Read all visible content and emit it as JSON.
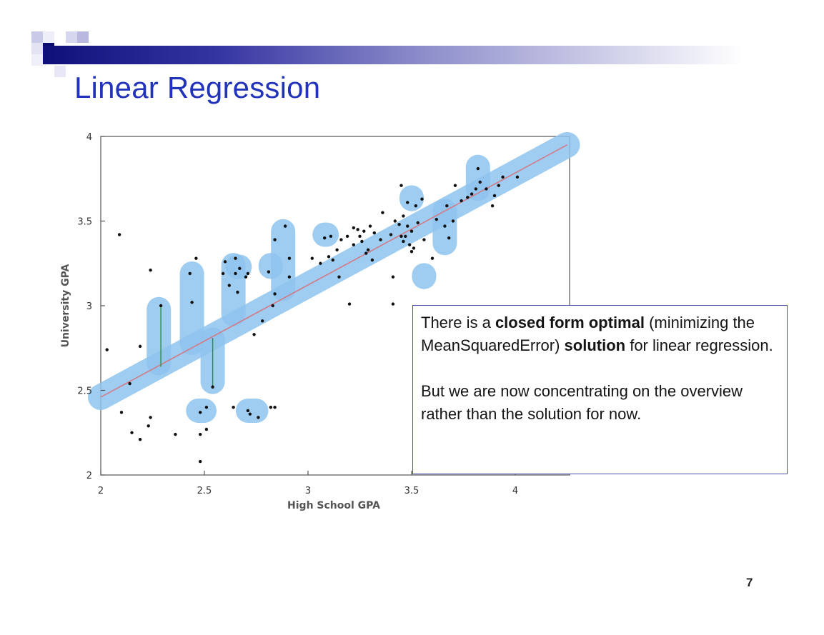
{
  "slide": {
    "title": "Linear Regression",
    "page_number": "7",
    "colors": {
      "title": "#2233bb",
      "header_bar_start": "#10107a",
      "box_border": "#4c4cae",
      "highlight": "#8ec3ef",
      "regression_line": "#d27b87",
      "residual_line": "#2f8f2f",
      "points": "#111111"
    },
    "note": {
      "p1_lead": "There is a ",
      "p1_bold1": "closed form optimal",
      "p1_mid": " (minimizing the MeanSquaredError) ",
      "p1_bold2": "solution",
      "p1_tail": " for linear regression.",
      "p2": "But we are now concentrating on the overview rather than the solution for now."
    }
  },
  "chart_data": {
    "type": "scatter",
    "xlabel": "High School GPA",
    "ylabel": "University GPA",
    "xlim": [
      2,
      4.25
    ],
    "ylim": [
      2,
      4
    ],
    "xticks": [
      {
        "value": 2,
        "label": "2"
      },
      {
        "value": 2.5,
        "label": "2.5"
      },
      {
        "value": 3,
        "label": "3"
      },
      {
        "value": 3.5,
        "label": "3.5"
      },
      {
        "value": 4,
        "label": "4"
      }
    ],
    "yticks": [
      {
        "value": 2,
        "label": "2"
      },
      {
        "value": 2.5,
        "label": "2.5"
      },
      {
        "value": 3,
        "label": "3"
      },
      {
        "value": 3.5,
        "label": "3.5"
      },
      {
        "value": 4,
        "label": "4"
      }
    ],
    "grid": false,
    "regression_line": {
      "x1": 2.0,
      "y1": 2.46,
      "x2": 4.25,
      "y2": 3.95
    },
    "points": [
      [
        2.03,
        2.74
      ],
      [
        2.09,
        3.42
      ],
      [
        2.1,
        2.37
      ],
      [
        2.14,
        2.54
      ],
      [
        2.15,
        2.25
      ],
      [
        2.19,
        2.76
      ],
      [
        2.19,
        2.21
      ],
      [
        2.23,
        2.29
      ],
      [
        2.24,
        2.34
      ],
      [
        2.24,
        3.21
      ],
      [
        2.29,
        3.0
      ],
      [
        2.36,
        2.24
      ],
      [
        2.43,
        3.19
      ],
      [
        2.44,
        3.02
      ],
      [
        2.46,
        3.28
      ],
      [
        2.48,
        2.37
      ],
      [
        2.48,
        2.24
      ],
      [
        2.48,
        2.08
      ],
      [
        2.51,
        2.4
      ],
      [
        2.51,
        2.27
      ],
      [
        2.54,
        2.52
      ],
      [
        2.59,
        3.19
      ],
      [
        2.6,
        3.26
      ],
      [
        2.62,
        3.12
      ],
      [
        2.64,
        2.4
      ],
      [
        2.65,
        3.28
      ],
      [
        2.65,
        3.19
      ],
      [
        2.66,
        3.08
      ],
      [
        2.67,
        3.22
      ],
      [
        2.7,
        3.17
      ],
      [
        2.71,
        3.19
      ],
      [
        2.71,
        2.38
      ],
      [
        2.72,
        2.36
      ],
      [
        2.74,
        2.83
      ],
      [
        2.76,
        2.34
      ],
      [
        2.78,
        2.91
      ],
      [
        2.81,
        3.2
      ],
      [
        2.82,
        2.4
      ],
      [
        2.83,
        3.0
      ],
      [
        2.84,
        3.07
      ],
      [
        2.84,
        3.39
      ],
      [
        2.84,
        2.4
      ],
      [
        2.89,
        3.47
      ],
      [
        2.91,
        3.17
      ],
      [
        2.91,
        3.28
      ],
      [
        3.02,
        3.28
      ],
      [
        3.06,
        3.25
      ],
      [
        3.08,
        3.4
      ],
      [
        3.1,
        3.29
      ],
      [
        3.11,
        3.41
      ],
      [
        3.12,
        3.27
      ],
      [
        3.14,
        3.33
      ],
      [
        3.15,
        3.17
      ],
      [
        3.16,
        3.39
      ],
      [
        3.19,
        3.41
      ],
      [
        3.2,
        3.01
      ],
      [
        3.22,
        3.46
      ],
      [
        3.22,
        3.36
      ],
      [
        3.24,
        3.45
      ],
      [
        3.25,
        3.41
      ],
      [
        3.26,
        3.38
      ],
      [
        3.27,
        3.44
      ],
      [
        3.28,
        3.31
      ],
      [
        3.29,
        3.33
      ],
      [
        3.3,
        3.47
      ],
      [
        3.31,
        3.27
      ],
      [
        3.32,
        3.43
      ],
      [
        3.35,
        3.39
      ],
      [
        3.36,
        3.55
      ],
      [
        3.4,
        3.42
      ],
      [
        3.41,
        3.17
      ],
      [
        3.41,
        3.01
      ],
      [
        3.42,
        3.5
      ],
      [
        3.44,
        3.48
      ],
      [
        3.45,
        3.71
      ],
      [
        3.45,
        3.41
      ],
      [
        3.46,
        3.38
      ],
      [
        3.46,
        3.53
      ],
      [
        3.47,
        3.41
      ],
      [
        3.48,
        3.61
      ],
      [
        3.48,
        3.47
      ],
      [
        3.49,
        3.36
      ],
      [
        3.5,
        3.32
      ],
      [
        3.5,
        3.44
      ],
      [
        3.51,
        3.34
      ],
      [
        3.52,
        3.59
      ],
      [
        3.53,
        3.49
      ],
      [
        3.55,
        3.63
      ],
      [
        3.56,
        3.39
      ],
      [
        3.6,
        3.28
      ],
      [
        3.62,
        3.51
      ],
      [
        3.66,
        3.47
      ],
      [
        3.67,
        3.59
      ],
      [
        3.68,
        3.4
      ],
      [
        3.7,
        3.5
      ],
      [
        3.71,
        3.71
      ],
      [
        3.74,
        3.62
      ],
      [
        3.77,
        3.64
      ],
      [
        3.79,
        3.66
      ],
      [
        3.81,
        3.69
      ],
      [
        3.82,
        3.81
      ],
      [
        3.83,
        3.73
      ],
      [
        3.86,
        3.69
      ],
      [
        3.89,
        3.59
      ],
      [
        3.9,
        3.65
      ],
      [
        3.92,
        3.71
      ],
      [
        3.94,
        3.76
      ],
      [
        4.01,
        3.76
      ]
    ],
    "residual_lines": [
      {
        "x": 2.29,
        "y_from": 2.64,
        "y_to": 3.0
      },
      {
        "x": 2.54,
        "y_from": 2.52,
        "y_to": 2.81
      }
    ],
    "highlight_band": [
      [
        2.0,
        2.46
      ],
      [
        4.25,
        3.95
      ]
    ],
    "highlight_strokes": [
      [
        [
          2.28,
          2.66
        ],
        [
          2.28,
          2.98
        ]
      ],
      [
        [
          2.44,
          2.78
        ],
        [
          2.44,
          3.19
        ]
      ],
      [
        [
          2.54,
          2.55
        ],
        [
          2.54,
          2.8
        ]
      ],
      [
        [
          2.64,
          2.95
        ],
        [
          2.64,
          3.24
        ]
      ],
      [
        [
          2.88,
          3.1
        ],
        [
          2.88,
          3.44
        ]
      ],
      [
        [
          3.66,
          3.37
        ],
        [
          3.66,
          3.56
        ]
      ],
      [
        [
          3.82,
          3.69
        ],
        [
          3.82,
          3.82
        ]
      ],
      [
        [
          2.47,
          2.38
        ],
        [
          2.5,
          2.38
        ]
      ],
      [
        [
          2.71,
          2.38
        ],
        [
          2.75,
          2.38
        ]
      ],
      [
        [
          2.66,
          3.23
        ],
        [
          2.67,
          3.23
        ]
      ],
      [
        [
          2.82,
          3.23
        ],
        [
          2.82,
          3.24
        ]
      ],
      [
        [
          3.08,
          3.42
        ],
        [
          3.09,
          3.42
        ]
      ],
      [
        [
          3.5,
          3.63
        ],
        [
          3.5,
          3.64
        ]
      ],
      [
        [
          3.56,
          3.18
        ],
        [
          3.56,
          3.17
        ]
      ]
    ]
  }
}
